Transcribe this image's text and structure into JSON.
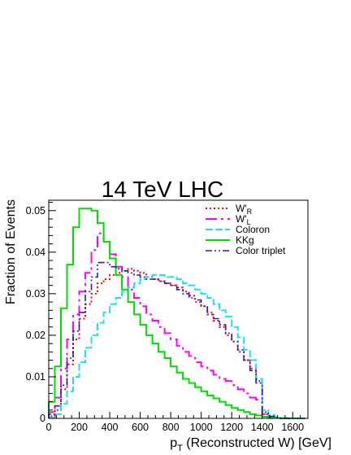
{
  "chart_data": {
    "type": "line",
    "title": "14 TeV LHC",
    "xlabel": "p_T (Reconstructed W) [GeV]",
    "ylabel": "Fraction of Events",
    "xlim": [
      0,
      1700
    ],
    "ylim": [
      0,
      0.0525
    ],
    "grid": false,
    "legend_placement": "top-right",
    "x_ticks": [
      0,
      200,
      400,
      600,
      800,
      1000,
      1200,
      1400,
      1600
    ],
    "x_tick_labels": [
      "0",
      "200",
      "400",
      "600",
      "800",
      "1000",
      "1200",
      "1400",
      "1600"
    ],
    "y_ticks": [
      0,
      0.01,
      0.02,
      0.03,
      0.04,
      0.05
    ],
    "y_tick_labels": [
      "0",
      "0.01",
      "0.02",
      "0.03",
      "0.04",
      "0.05"
    ],
    "bin_width": 40,
    "x": [
      20,
      60,
      100,
      140,
      180,
      220,
      260,
      300,
      340,
      380,
      420,
      460,
      500,
      540,
      580,
      620,
      660,
      700,
      740,
      780,
      820,
      860,
      900,
      940,
      980,
      1020,
      1060,
      1100,
      1140,
      1180,
      1220,
      1260,
      1300,
      1340,
      1380,
      1420,
      1460,
      1500,
      1540,
      1580,
      1620,
      1660
    ],
    "series": [
      {
        "name": "W'_R",
        "color": "#ff0000",
        "dash": "2,3",
        "width": 2,
        "values": [
          0.0005,
          0.002,
          0.007,
          0.013,
          0.019,
          0.024,
          0.0275,
          0.03,
          0.0325,
          0.0335,
          0.0345,
          0.035,
          0.0355,
          0.036,
          0.0355,
          0.035,
          0.034,
          0.0335,
          0.033,
          0.0325,
          0.032,
          0.0315,
          0.0305,
          0.0295,
          0.028,
          0.027,
          0.025,
          0.0235,
          0.022,
          0.02,
          0.0185,
          0.016,
          0.014,
          0.012,
          0.009,
          0.001,
          0.0003,
          0.0001,
          0,
          0,
          0,
          0
        ]
      },
      {
        "name": "W'_L",
        "color": "#ff00ff",
        "dash": "14,5,3,5",
        "width": 2,
        "values": [
          0.0015,
          0.005,
          0.012,
          0.019,
          0.025,
          0.0305,
          0.035,
          0.0405,
          0.0445,
          0.0425,
          0.0395,
          0.0365,
          0.034,
          0.031,
          0.029,
          0.027,
          0.025,
          0.0235,
          0.022,
          0.0205,
          0.019,
          0.0175,
          0.016,
          0.015,
          0.0135,
          0.0125,
          0.0115,
          0.0105,
          0.0095,
          0.009,
          0.008,
          0.007,
          0.006,
          0.005,
          0.0045,
          0.001,
          0.0003,
          0.0001,
          0,
          0,
          0,
          0
        ]
      },
      {
        "name": "Coloron",
        "color": "#22e0e8",
        "dash": "9,3",
        "width": 2,
        "values": [
          0.0002,
          0.001,
          0.0035,
          0.0065,
          0.01,
          0.0135,
          0.017,
          0.02,
          0.023,
          0.0255,
          0.0275,
          0.029,
          0.0305,
          0.0315,
          0.0325,
          0.0335,
          0.034,
          0.0345,
          0.0345,
          0.034,
          0.034,
          0.0335,
          0.0325,
          0.032,
          0.031,
          0.03,
          0.029,
          0.0275,
          0.026,
          0.0245,
          0.022,
          0.0195,
          0.0165,
          0.014,
          0.0095,
          0.002,
          0.0008,
          0.0003,
          0.0001,
          0,
          0,
          0
        ]
      },
      {
        "name": "KKg",
        "color": "#00dd00",
        "dash": "",
        "width": 2,
        "values": [
          0.004,
          0.0125,
          0.0265,
          0.037,
          0.046,
          0.0505,
          0.0505,
          0.05,
          0.047,
          0.0425,
          0.0385,
          0.0345,
          0.031,
          0.028,
          0.025,
          0.0225,
          0.02,
          0.018,
          0.016,
          0.0145,
          0.0125,
          0.011,
          0.0095,
          0.0085,
          0.0075,
          0.0065,
          0.0055,
          0.0048,
          0.004,
          0.0032,
          0.0025,
          0.002,
          0.0015,
          0.001,
          0.0007,
          0.0004,
          0.0002,
          0.0001,
          0,
          0,
          0,
          0
        ]
      },
      {
        "name": "Color triplet",
        "color": "#2222bb",
        "dash": "8,3,2,3,2,3",
        "width": 1.6,
        "values": [
          0.001,
          0.003,
          0.008,
          0.0145,
          0.021,
          0.0255,
          0.0305,
          0.034,
          0.0375,
          0.0375,
          0.0365,
          0.036,
          0.0355,
          0.035,
          0.0345,
          0.034,
          0.0335,
          0.0335,
          0.033,
          0.0325,
          0.032,
          0.031,
          0.03,
          0.029,
          0.0285,
          0.027,
          0.0255,
          0.024,
          0.0225,
          0.0205,
          0.0185,
          0.0165,
          0.014,
          0.0115,
          0.0085,
          0.0015,
          0.0005,
          0.0002,
          0,
          0,
          0,
          0
        ]
      }
    ]
  }
}
